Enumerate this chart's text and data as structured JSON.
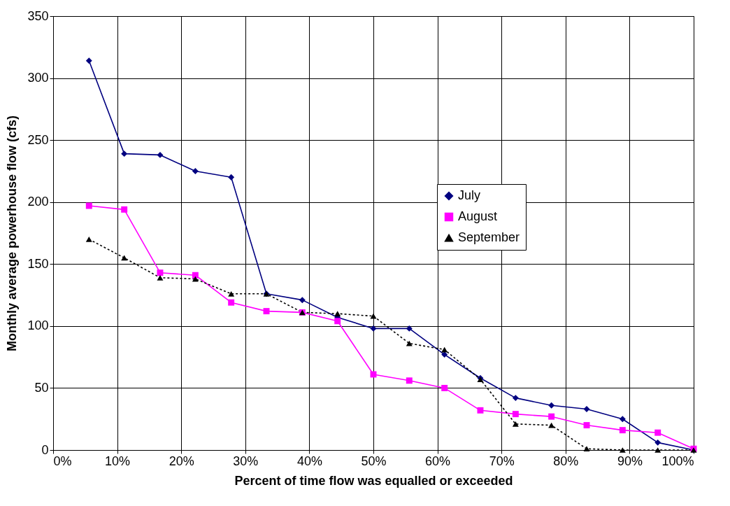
{
  "chart_data": {
    "type": "line",
    "xlabel": "Percent of time flow was equalled or exceeded",
    "ylabel": "Monthly average powerhouse flow (cfs)",
    "x": [
      5.6,
      11.1,
      16.7,
      22.2,
      27.8,
      33.3,
      38.9,
      44.4,
      50,
      55.6,
      61.1,
      66.7,
      72.2,
      77.8,
      83.3,
      88.9,
      94.4,
      100
    ],
    "xlim": [
      0,
      100
    ],
    "xticks": [
      {
        "value": 0,
        "label": "0%"
      },
      {
        "value": 10,
        "label": "10%"
      },
      {
        "value": 20,
        "label": "20%"
      },
      {
        "value": 30,
        "label": "30%"
      },
      {
        "value": 40,
        "label": "40%"
      },
      {
        "value": 50,
        "label": "50%"
      },
      {
        "value": 60,
        "label": "60%"
      },
      {
        "value": 70,
        "label": "70%"
      },
      {
        "value": 80,
        "label": "80%"
      },
      {
        "value": 90,
        "label": "90%"
      },
      {
        "value": 100,
        "label": "100%"
      }
    ],
    "ylim": [
      0,
      350
    ],
    "yticks": [
      0,
      50,
      100,
      150,
      200,
      250,
      300,
      350
    ],
    "grid": true,
    "legend": "top right",
    "series": [
      {
        "name": "July",
        "color": "#000080",
        "marker": "diamond",
        "line_style": "solid",
        "values": [
          314,
          239,
          238,
          225,
          220,
          126,
          121,
          107,
          98,
          98,
          77,
          58,
          42,
          36,
          33,
          25,
          6,
          0
        ]
      },
      {
        "name": "August",
        "color": "#ff00ff",
        "marker": "square",
        "line_style": "solid",
        "values": [
          197,
          194,
          143,
          141,
          119,
          112,
          111,
          104,
          61,
          56,
          50,
          32,
          29,
          27,
          20,
          16,
          14,
          1
        ]
      },
      {
        "name": "September",
        "color": "#000000",
        "marker": "triangle",
        "line_style": "dashed",
        "values": [
          170,
          155,
          139,
          138,
          126,
          126,
          111,
          110,
          108,
          86,
          81,
          57,
          21,
          20,
          1,
          0,
          0,
          0
        ]
      }
    ]
  }
}
